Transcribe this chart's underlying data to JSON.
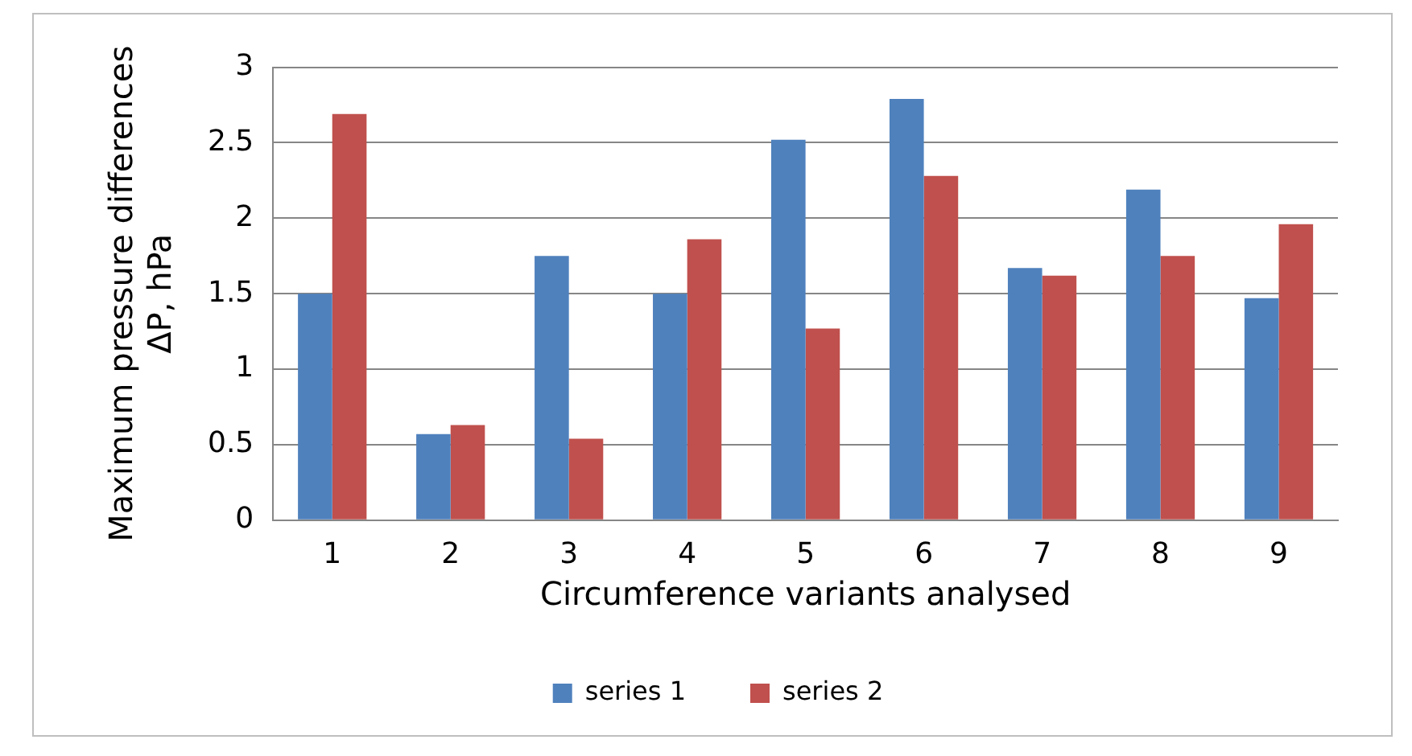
{
  "chart_data": {
    "type": "bar",
    "xlabel": "Circumference variants analysed",
    "ylabel": "Maximum pressure differences\nΔP, hPa",
    "categories": [
      "1",
      "2",
      "3",
      "4",
      "5",
      "6",
      "7",
      "8",
      "9"
    ],
    "series": [
      {
        "name": "series 1",
        "color": "#4f81bd",
        "values": [
          1.5,
          0.57,
          1.75,
          1.5,
          2.52,
          2.79,
          1.67,
          2.19,
          1.47
        ]
      },
      {
        "name": "series 2",
        "color": "#c0504d",
        "values": [
          2.69,
          0.63,
          0.54,
          1.86,
          1.27,
          2.28,
          1.62,
          1.75,
          1.96
        ]
      }
    ],
    "ylim": [
      0,
      3
    ],
    "yticks": [
      0,
      0.5,
      1,
      1.5,
      2,
      2.5,
      3
    ],
    "grid": "y",
    "legend": "bottom"
  }
}
